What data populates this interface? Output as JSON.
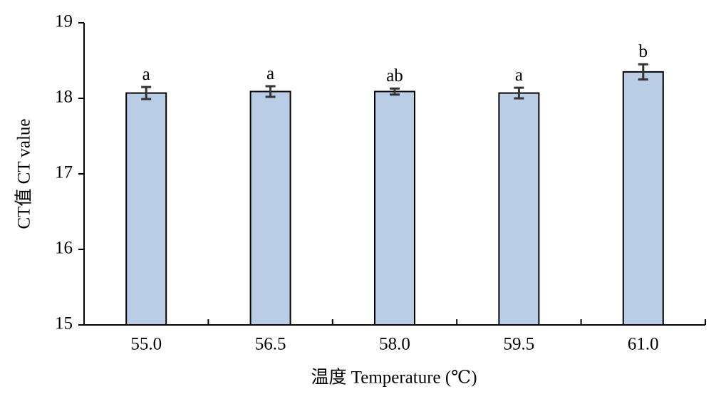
{
  "chart_data": {
    "type": "bar",
    "x_label": "温度 Temperature (℃)",
    "y_label": "CT值 CT value",
    "categories": [
      "55.0",
      "56.5",
      "58.0",
      "59.5",
      "61.0"
    ],
    "values": [
      18.07,
      18.09,
      18.09,
      18.07,
      18.35
    ],
    "errors": [
      0.08,
      0.07,
      0.04,
      0.07,
      0.1
    ],
    "significance_labels": [
      "a",
      "a",
      "ab",
      "a",
      "b"
    ],
    "color": "#b9cde5",
    "ylim": [
      15,
      19
    ],
    "yticks": [
      15,
      16,
      17,
      18,
      19
    ],
    "grid": false
  }
}
